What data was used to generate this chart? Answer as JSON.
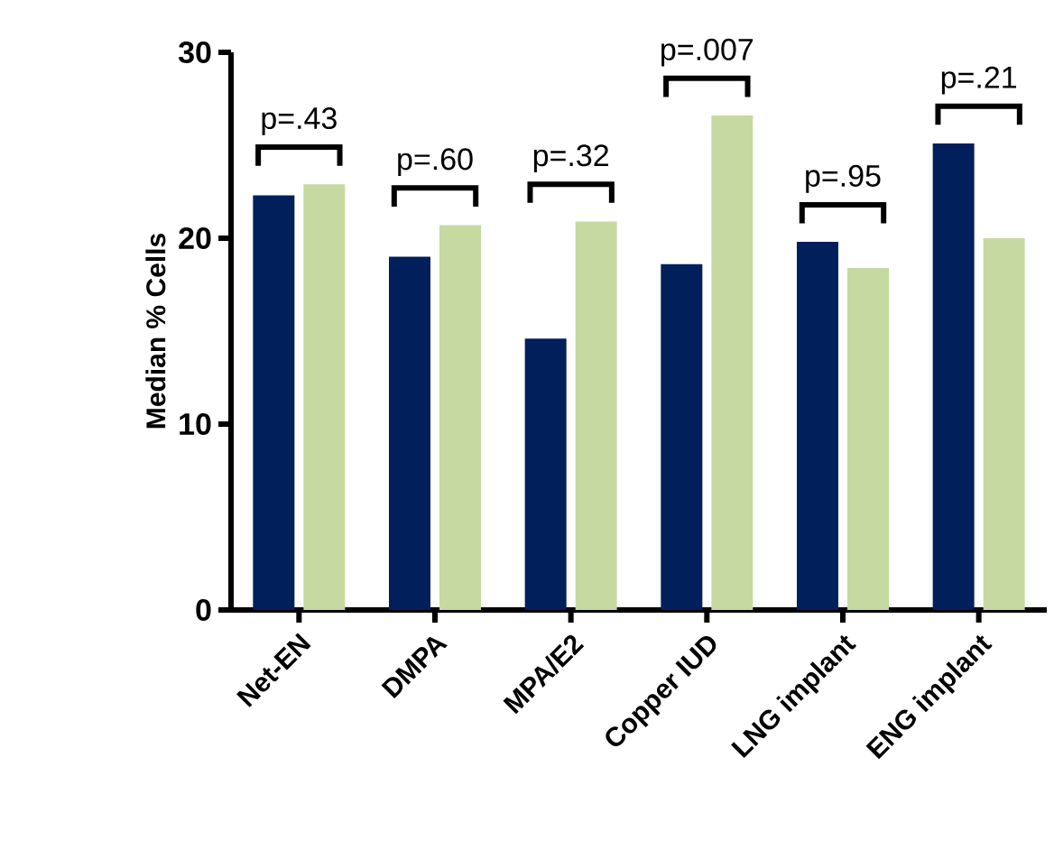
{
  "chart_data": {
    "type": "bar",
    "ylabel": "Median % Cells",
    "categories": [
      "Net-EN",
      "DMPA",
      "MPA/E2",
      "Copper IUD",
      "LNG implant",
      "ENG implant"
    ],
    "series": [
      {
        "color": "#001f5b",
        "values": [
          22.3,
          19.0,
          14.6,
          18.6,
          19.8,
          25.1
        ]
      },
      {
        "color": "#c6d9a0",
        "values": [
          22.9,
          20.7,
          20.9,
          26.6,
          18.4,
          20.0
        ]
      }
    ],
    "ylim": [
      0,
      30
    ],
    "yticks": [
      0,
      10,
      20,
      30
    ],
    "annotations": [
      "p=.43",
      "p=.60",
      "p=.32",
      "p=.007",
      "p=.95",
      "p=.21"
    ]
  }
}
